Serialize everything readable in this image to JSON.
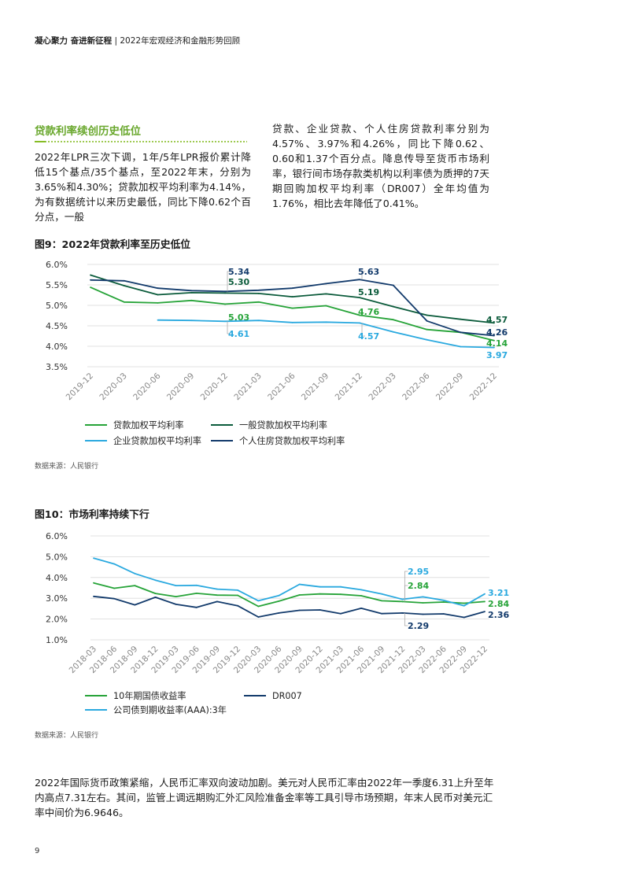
{
  "header": {
    "bold": "凝心聚力 奋进新征程",
    "sep": " | ",
    "rest": "2022年宏观经济和金融形势回顾"
  },
  "section": {
    "title": "贷款利率续创历史低位"
  },
  "paragraph_left": "2022年LPR三次下调，1年/5年LPR报价累计降低15个基点/35个基点，至2022年末，分别为3.65%和4.30%；贷款加权平均利率为4.14%，为有数据统计以来历史最低，同比下降0.62个百分点，一般",
  "paragraph_right": "贷款、企业贷款、个人住房贷款利率分别为4.57%、3.97%和4.26%，同比下降0.62、0.60和1.37个百分点。降息传导至货币市场利率，银行间市场存款类机构以利率债为质押的7天期回购加权平均利率（DR007）全年均值为1.76%，相比去年降低了0.41%。",
  "figure9": {
    "title": "图9：2022年贷款利率至历史低位",
    "source": "数据来源：人民银行"
  },
  "figure10": {
    "title": "图10：市场利率持续下行",
    "source": "数据来源：人民银行"
  },
  "bottom_paragraph": "2022年国际货币政策紧缩，人民币汇率双向波动加剧。美元对人民币汇率由2022年一季度6.31上升至年内高点7.31左右。其间，监管上调远期购汇外汇风险准备金率等工具引导市场预期，年末人民币对美元汇率中间价为6.9646。",
  "page_number": "9",
  "colors": {
    "green": "#26a338",
    "dark_green": "#0b5b3b",
    "light_blue": "#2aa9df",
    "navy": "#123a6b",
    "section_green": "#6aa82e"
  },
  "chart_data": [
    {
      "type": "line",
      "title": "图9：2022年贷款利率至历史低位",
      "categories": [
        "2019-12",
        "2020-03",
        "2020-06",
        "2020-09",
        "2020-12",
        "2021-03",
        "2021-06",
        "2021-09",
        "2021-12",
        "2022-03",
        "2022-06",
        "2022-09",
        "2022-12"
      ],
      "ylim": [
        3.5,
        6.0
      ],
      "yticks": [
        "6.0%",
        "5.5%",
        "5.0%",
        "4.5%",
        "4.0%",
        "3.5%"
      ],
      "legend_position": "bottom",
      "series": [
        {
          "name": "贷款加权平均利率",
          "color": "#26a338",
          "values": [
            5.44,
            5.08,
            5.06,
            5.12,
            5.03,
            5.08,
            4.93,
            4.99,
            4.76,
            4.65,
            4.41,
            4.34,
            4.14
          ]
        },
        {
          "name": "一般贷款加权平均利率",
          "color": "#0b5b3b",
          "values": [
            5.74,
            5.48,
            5.26,
            5.31,
            5.3,
            5.29,
            5.21,
            5.28,
            5.19,
            4.97,
            4.76,
            4.66,
            4.57
          ]
        },
        {
          "name": "企业贷款加权平均利率",
          "color": "#2aa9df",
          "values": [
            null,
            null,
            4.64,
            4.63,
            4.61,
            4.63,
            4.58,
            4.59,
            4.57,
            4.35,
            4.16,
            3.99,
            3.97
          ]
        },
        {
          "name": "个人住房贷款加权平均利率",
          "color": "#123a6b",
          "values": [
            5.62,
            5.6,
            5.42,
            5.36,
            5.34,
            5.37,
            5.42,
            5.53,
            5.63,
            5.49,
            4.62,
            4.34,
            4.26
          ]
        }
      ],
      "annotations": [
        {
          "text": "5.34",
          "series": 3,
          "index": 4
        },
        {
          "text": "5.30",
          "series": 1,
          "index": 4
        },
        {
          "text": "5.03",
          "series": 0,
          "index": 4
        },
        {
          "text": "4.61",
          "series": 2,
          "index": 4
        },
        {
          "text": "5.63",
          "series": 3,
          "index": 8
        },
        {
          "text": "5.19",
          "series": 1,
          "index": 8
        },
        {
          "text": "4.76",
          "series": 0,
          "index": 8
        },
        {
          "text": "4.57",
          "series": 2,
          "index": 8
        },
        {
          "text": "4.57",
          "series": 1,
          "index": 12
        },
        {
          "text": "4.26",
          "series": 3,
          "index": 12
        },
        {
          "text": "4.14",
          "series": 0,
          "index": 12
        },
        {
          "text": "3.97",
          "series": 2,
          "index": 12
        }
      ]
    },
    {
      "type": "line",
      "title": "图10：市场利率持续下行",
      "categories": [
        "2018-03",
        "2018-06",
        "2018-09",
        "2018-12",
        "2019-03",
        "2019-06",
        "2019-09",
        "2019-12",
        "2020-03",
        "2020-06",
        "2020-09",
        "2020-12",
        "2021-03",
        "2021-06",
        "2021-09",
        "2021-12",
        "2022-03",
        "2022-06",
        "2022-09",
        "2022-12"
      ],
      "ylim": [
        1.0,
        6.0
      ],
      "yticks": [
        "6.0%",
        "5.0%",
        "4.0%",
        "3.0%",
        "2.0%",
        "1.0%"
      ],
      "legend_position": "bottom",
      "series": [
        {
          "name": "10年期国债收益率",
          "color": "#26a338",
          "values": [
            3.74,
            3.48,
            3.61,
            3.23,
            3.08,
            3.24,
            3.15,
            3.14,
            2.61,
            2.86,
            3.16,
            3.21,
            3.19,
            3.12,
            2.88,
            2.84,
            2.78,
            2.82,
            2.76,
            2.84
          ]
        },
        {
          "name": "公司债到期收益率(AAA):3年",
          "color": "#2aa9df",
          "values": [
            4.93,
            4.65,
            4.19,
            3.87,
            3.61,
            3.62,
            3.44,
            3.39,
            2.88,
            3.13,
            3.67,
            3.55,
            3.55,
            3.41,
            3.21,
            2.95,
            3.07,
            2.9,
            2.64,
            3.21
          ]
        },
        {
          "name": "DR007",
          "color": "#123a6b",
          "values": [
            3.09,
            2.98,
            2.68,
            3.05,
            2.71,
            2.56,
            2.84,
            2.64,
            2.1,
            2.29,
            2.42,
            2.44,
            2.26,
            2.52,
            2.26,
            2.29,
            2.23,
            2.25,
            2.08,
            2.36
          ]
        }
      ],
      "annotations": [
        {
          "text": "2.95",
          "series": 1,
          "index": 15
        },
        {
          "text": "2.84",
          "series": 0,
          "index": 15
        },
        {
          "text": "2.29",
          "series": 2,
          "index": 15
        },
        {
          "text": "3.21",
          "series": 1,
          "index": 19
        },
        {
          "text": "2.84",
          "series": 0,
          "index": 19
        },
        {
          "text": "2.36",
          "series": 2,
          "index": 19
        }
      ]
    }
  ]
}
